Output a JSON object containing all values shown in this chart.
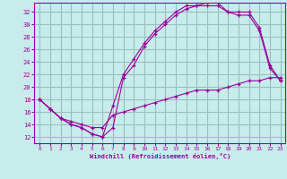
{
  "xlabel": "Windchill (Refroidissement éolien,°C)",
  "background_color": "#c8ecec",
  "grid_color": "#9bbfbf",
  "line_color": "#990099",
  "x_ticks": [
    0,
    1,
    2,
    3,
    4,
    5,
    6,
    7,
    8,
    9,
    10,
    11,
    12,
    13,
    14,
    15,
    16,
    17,
    18,
    19,
    20,
    21,
    22,
    23
  ],
  "y_ticks": [
    12,
    14,
    16,
    18,
    20,
    22,
    24,
    26,
    28,
    30,
    32
  ],
  "xlim": [
    -0.5,
    23.5
  ],
  "ylim": [
    11,
    33.5
  ],
  "line1_x": [
    0,
    1,
    2,
    3,
    4,
    5,
    6,
    7,
    8,
    9,
    10,
    11,
    12,
    13,
    14,
    15,
    16,
    17,
    18,
    19,
    20,
    21,
    22,
    23
  ],
  "line1_y": [
    18,
    16.5,
    15,
    14,
    13.5,
    12.5,
    12,
    13.5,
    21.5,
    23.5,
    26.5,
    28.5,
    30,
    31.5,
    32.5,
    33,
    33,
    33,
    32,
    31.5,
    31.5,
    29,
    23,
    21
  ],
  "line2_x": [
    0,
    1,
    2,
    3,
    4,
    5,
    6,
    7,
    8,
    9,
    10,
    11,
    12,
    13,
    14,
    15,
    16,
    17,
    18,
    19,
    20,
    21,
    22,
    23
  ],
  "line2_y": [
    18,
    16.5,
    15,
    14,
    13.5,
    12.5,
    12,
    17,
    22,
    24.5,
    27,
    29,
    30.5,
    32,
    33,
    33,
    33.5,
    33.5,
    32,
    32,
    32,
    29.5,
    23.5,
    21
  ],
  "line3_x": [
    0,
    1,
    2,
    3,
    4,
    5,
    6,
    7,
    8,
    9,
    10,
    11,
    12,
    13,
    14,
    15,
    16,
    17,
    18,
    19,
    20,
    21,
    22,
    23
  ],
  "line3_y": [
    18,
    16.5,
    15,
    14.5,
    14,
    13.5,
    13.5,
    15.5,
    16,
    16.5,
    17,
    17.5,
    18,
    18.5,
    19,
    19.5,
    19.5,
    19.5,
    20,
    20.5,
    21,
    21,
    21.5,
    21.5
  ]
}
